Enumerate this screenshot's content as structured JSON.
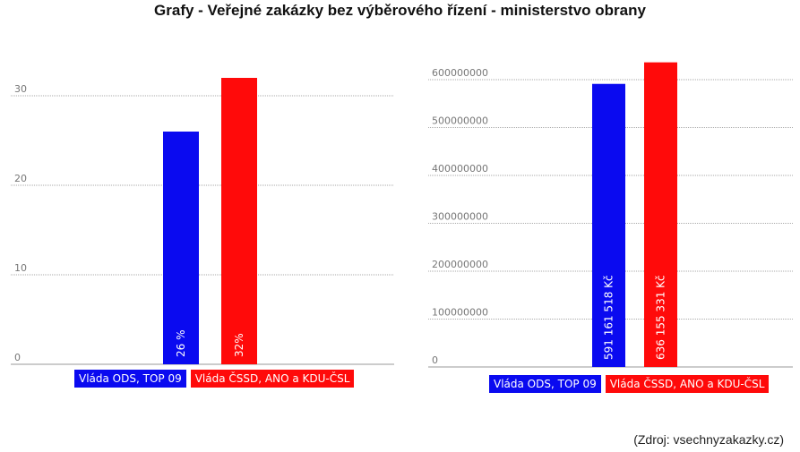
{
  "title": "Grafy - Veřejné zakázky bez výběrového řízení - ministerstvo obrany",
  "source": "(Zdroj: vsechnyzakazky.cz)",
  "colors": {
    "ods": "#0a0af0",
    "cssd": "#ff0a0a",
    "grid": "#aaaaaa",
    "axis": "#999999"
  },
  "legend": [
    "Vláda ODS, TOP 09",
    "Vláda ČSSD, ANO a KDU-ČSL"
  ],
  "chart_data": [
    {
      "type": "bar",
      "categories": [
        "Vláda ODS, TOP 09",
        "Vláda ČSSD, ANO a KDU-ČSL"
      ],
      "values": [
        26,
        32
      ],
      "value_labels": [
        "26 %",
        "32%"
      ],
      "ylim": [
        0,
        30
      ],
      "yticks": [
        "0",
        "10",
        "20",
        "30"
      ],
      "grid": true
    },
    {
      "type": "bar",
      "categories": [
        "Vláda ODS, TOP 09",
        "Vláda ČSSD, ANO a KDU-ČSL"
      ],
      "values": [
        591161518,
        636155331
      ],
      "value_labels": [
        "591 161 518 Kč",
        "636 155 331 Kč"
      ],
      "ylim": [
        0,
        600000000
      ],
      "yticks": [
        "0",
        "100000000",
        "200000000",
        "300000000",
        "400000000",
        "500000000",
        "600000000"
      ],
      "grid": true
    }
  ]
}
